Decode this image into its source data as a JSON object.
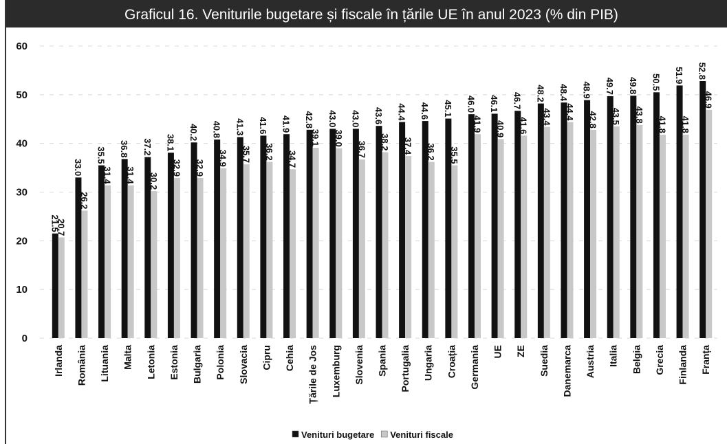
{
  "chart_data": {
    "type": "bar",
    "title": "Graficul 16. Veniturile bugetare și fiscale în țările UE în anul 2023 (% din PIB)",
    "categories": [
      "Irlanda",
      "România",
      "Lituania",
      "Malta",
      "Letonia",
      "Estonia",
      "Bulgaria",
      "Polonia",
      "Slovacia",
      "Cipru",
      "Cehia",
      "Țările de Jos",
      "Luxemburg",
      "Slovenia",
      "Spania",
      "Portugalia",
      "Ungaria",
      "Croația",
      "Germania",
      "UE",
      "ZE",
      "Suedia",
      "Danemarca",
      "Austria",
      "Italia",
      "Belgia",
      "Grecia",
      "Finlanda",
      "Franța"
    ],
    "series": [
      {
        "name": "Venituri bugetare",
        "color": "#111111",
        "values": [
          21.5,
          33.0,
          35.5,
          36.8,
          37.2,
          38.1,
          40.2,
          40.8,
          41.3,
          41.6,
          41.9,
          42.8,
          43.0,
          43.0,
          43.6,
          44.4,
          44.6,
          45.1,
          46.0,
          46.1,
          46.7,
          48.2,
          48.4,
          48.9,
          49.7,
          49.8,
          50.5,
          51.9,
          52.8
        ],
        "value_labels": [
          "21.5",
          "33.0",
          "35.5",
          "36.8",
          "37.2",
          "38.1",
          "40.2",
          "40.8",
          "41.3",
          "41.6",
          "41.9",
          "42.8",
          "43.0",
          "43.0",
          "43.6",
          "44.4",
          "44.6",
          "45.1",
          "46.0",
          "46.1",
          "46.7",
          "48.2",
          "48.4",
          "48.9",
          "49.7",
          "49.8",
          "50.5",
          "51.9",
          "52.8"
        ]
      },
      {
        "name": "Venituri fiscale",
        "color": "#c8c8c8",
        "values": [
          20.7,
          26.2,
          31.4,
          31.4,
          30.2,
          32.9,
          32.9,
          34.9,
          35.7,
          36.2,
          34.7,
          39.1,
          39.0,
          36.7,
          38.2,
          37.4,
          36.2,
          35.5,
          41.9,
          40.9,
          41.6,
          43.4,
          44.4,
          42.8,
          43.5,
          43.8,
          41.8,
          41.8,
          46.9
        ],
        "value_labels": [
          "20.7",
          "26.2",
          "31.4",
          "31.4",
          "30.2",
          "32.9",
          "32.9",
          "34.9",
          "35.7",
          "36.2",
          "34.7",
          "39.1",
          "39.0",
          "36.7",
          "38.2",
          "37.4",
          "36.2",
          "35.5",
          "41.9",
          "40.9",
          "41.6",
          "43.4",
          "44.4",
          "42.8",
          "43.5",
          "43.8",
          "41.8",
          "41.8",
          "46.9"
        ]
      }
    ],
    "ylim": [
      0,
      60
    ],
    "yticks": [
      0,
      10,
      20,
      30,
      40,
      50,
      60
    ],
    "grid": true,
    "legend": "bottom"
  }
}
